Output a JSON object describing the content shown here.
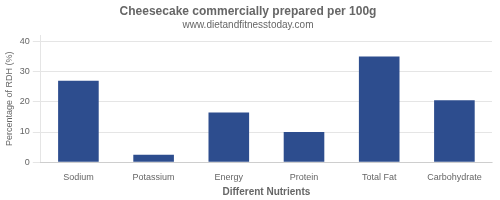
{
  "chart_data": {
    "type": "bar",
    "title": "Cheesecake commercially prepared per 100g",
    "subtitle": "www.dietandfitnesstoday.com",
    "xlabel": "Different Nutrients",
    "ylabel": "Percentage of RDH (%)",
    "categories": [
      "Sodium",
      "Potassium",
      "Energy",
      "Protein",
      "Total Fat",
      "Carbohydrate"
    ],
    "values": [
      27,
      2.5,
      16.5,
      10,
      35,
      20.5
    ],
    "color": "#2d4d8e",
    "ylim": [
      0,
      42
    ],
    "yticks": [
      0,
      10,
      20,
      30,
      40
    ],
    "grid": true
  }
}
